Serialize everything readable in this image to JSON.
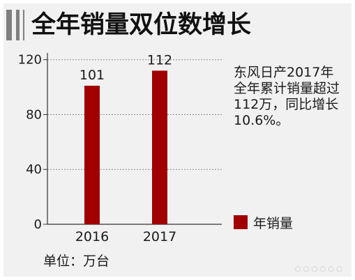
{
  "header": {
    "title": "全年销量双位数增长"
  },
  "annotation": {
    "lines": [
      "东风日产2017年",
      "全年累计销量超过",
      "112万，同比增长",
      "10.6%。"
    ]
  },
  "legend": {
    "label": "年销量"
  },
  "unit_label": "单位：万台",
  "colors": {
    "bar": "#a00000",
    "accent": "#7f7f7f"
  },
  "chart_data": {
    "type": "bar",
    "categories": [
      "2016",
      "2017"
    ],
    "series": [
      {
        "name": "年销量",
        "values": [
          101,
          112
        ]
      }
    ],
    "data_labels": [
      "101",
      "112"
    ],
    "yticks": [
      "0",
      "40",
      "80",
      "120"
    ],
    "ylim": [
      0,
      130
    ],
    "grid": true,
    "legend_position": "right"
  }
}
